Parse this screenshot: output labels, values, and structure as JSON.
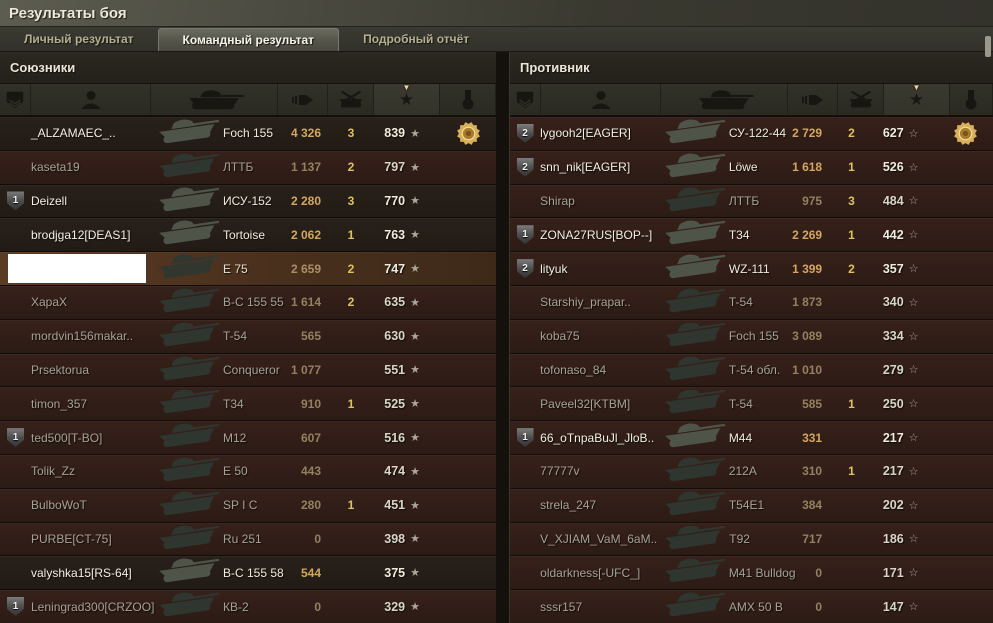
{
  "window": {
    "title": "Результаты боя"
  },
  "tabs": [
    {
      "label": "Личный результат",
      "active": false
    },
    {
      "label": "Командный результат",
      "active": true
    },
    {
      "label": "Подробный отчёт",
      "active": false
    }
  ],
  "columns": {
    "badge_icon": "rank-badge-icon",
    "player_icon": "player-icon",
    "tank_icon": "tank-icon",
    "damage_icon": "shell-icon",
    "kills_icon": "destroyed-tank-icon",
    "xp_icon": "star-icon",
    "medal_icon": "medal-icon",
    "sort_indicator": "▼",
    "sorted_column": "xp"
  },
  "colors": {
    "own_row": "#5b3b23",
    "dead_row": "#37201a",
    "alive_row": "#282019",
    "damage_gold": "#d4a75c",
    "kills_yellow": "#ddc261",
    "medal_gold": "#d9b05a",
    "active_tab": "#55544a"
  },
  "allies": {
    "title": "Союзники",
    "xp_star": "★",
    "rows": [
      {
        "name": "_ALZAMAEC_..",
        "tank": "Foch 155",
        "dmg": "4 326",
        "kills": "3",
        "xp": "839",
        "platoon": "",
        "medal": true,
        "bright": true,
        "dead": false,
        "own": false,
        "censored": false
      },
      {
        "name": "kaseta19",
        "tank": "ЛТТБ",
        "dmg": "1 137",
        "kills": "2",
        "xp": "797",
        "platoon": "",
        "medal": false,
        "bright": false,
        "dead": true,
        "own": false,
        "censored": false
      },
      {
        "name": "Deizell",
        "tank": "ИСУ-152",
        "dmg": "2 280",
        "kills": "3",
        "xp": "770",
        "platoon": "1",
        "medal": false,
        "bright": true,
        "dead": false,
        "own": false,
        "censored": false
      },
      {
        "name": "brodjga12[DEAS1]",
        "tank": "Tortoise",
        "dmg": "2 062",
        "kills": "1",
        "xp": "763",
        "platoon": "",
        "medal": false,
        "bright": true,
        "dead": false,
        "own": false,
        "censored": false
      },
      {
        "name": "",
        "tank": "E 75",
        "dmg": "2 659",
        "kills": "2",
        "xp": "747",
        "platoon": "",
        "medal": false,
        "bright": false,
        "dead": false,
        "own": true,
        "censored": true
      },
      {
        "name": "XapaX",
        "tank": "B-C 155 55",
        "dmg": "1 614",
        "kills": "2",
        "xp": "635",
        "platoon": "",
        "medal": false,
        "bright": false,
        "dead": true,
        "own": false,
        "censored": false
      },
      {
        "name": "mordvin156makar..",
        "tank": "T-54",
        "dmg": "565",
        "kills": "",
        "xp": "630",
        "platoon": "",
        "medal": false,
        "bright": false,
        "dead": true,
        "own": false,
        "censored": false
      },
      {
        "name": "Prsektorua",
        "tank": "Conqueror",
        "dmg": "1 077",
        "kills": "",
        "xp": "551",
        "platoon": "",
        "medal": false,
        "bright": false,
        "dead": true,
        "own": false,
        "censored": false
      },
      {
        "name": "timon_357",
        "tank": "T34",
        "dmg": "910",
        "kills": "1",
        "xp": "525",
        "platoon": "",
        "medal": false,
        "bright": false,
        "dead": true,
        "own": false,
        "censored": false
      },
      {
        "name": "ted500[T-BO]",
        "tank": "M12",
        "dmg": "607",
        "kills": "",
        "xp": "516",
        "platoon": "1",
        "medal": false,
        "bright": false,
        "dead": true,
        "own": false,
        "censored": false
      },
      {
        "name": "Tolik_Zz",
        "tank": "E 50",
        "dmg": "443",
        "kills": "",
        "xp": "474",
        "platoon": "",
        "medal": false,
        "bright": false,
        "dead": true,
        "own": false,
        "censored": false
      },
      {
        "name": "BulboWoT",
        "tank": "SP I C",
        "dmg": "280",
        "kills": "1",
        "xp": "451",
        "platoon": "",
        "medal": false,
        "bright": false,
        "dead": true,
        "own": false,
        "censored": false
      },
      {
        "name": "PURBE[CT-75]",
        "tank": "Ru 251",
        "dmg": "0",
        "kills": "",
        "xp": "398",
        "platoon": "",
        "medal": false,
        "bright": false,
        "dead": true,
        "own": false,
        "censored": false
      },
      {
        "name": "valyshka15[RS-64]",
        "tank": "B-C 155 58",
        "dmg": "544",
        "kills": "",
        "xp": "375",
        "platoon": "",
        "medal": false,
        "bright": true,
        "dead": false,
        "own": false,
        "censored": false
      },
      {
        "name": "Leningrad300[CRZOO]",
        "tank": "КВ-2",
        "dmg": "0",
        "kills": "",
        "xp": "329",
        "platoon": "1",
        "medal": false,
        "bright": false,
        "dead": true,
        "own": false,
        "censored": false
      }
    ]
  },
  "enemies": {
    "title": "Противник",
    "xp_star": "☆",
    "rows": [
      {
        "name": "lygooh2[EAGER]",
        "tank": "СУ-122-44",
        "dmg": "2 729",
        "kills": "2",
        "xp": "627",
        "platoon": "2",
        "medal": true,
        "bright": true,
        "dead": true,
        "own": false,
        "censored": false
      },
      {
        "name": "snn_nik[EAGER]",
        "tank": "Löwe",
        "dmg": "1 618",
        "kills": "1",
        "xp": "526",
        "platoon": "2",
        "medal": false,
        "bright": true,
        "dead": true,
        "own": false,
        "censored": false
      },
      {
        "name": "Shirap",
        "tank": "ЛТТБ",
        "dmg": "975",
        "kills": "3",
        "xp": "484",
        "platoon": "",
        "medal": false,
        "bright": false,
        "dead": true,
        "own": false,
        "censored": false
      },
      {
        "name": "ZONA27RUS[BOP--]",
        "tank": "T34",
        "dmg": "2 269",
        "kills": "1",
        "xp": "442",
        "platoon": "1",
        "medal": false,
        "bright": true,
        "dead": true,
        "own": false,
        "censored": false
      },
      {
        "name": "lityuk",
        "tank": "WZ-111",
        "dmg": "1 399",
        "kills": "2",
        "xp": "357",
        "platoon": "2",
        "medal": false,
        "bright": true,
        "dead": true,
        "own": false,
        "censored": false
      },
      {
        "name": "Starshiy_prapar..",
        "tank": "T-54",
        "dmg": "1 873",
        "kills": "",
        "xp": "340",
        "platoon": "",
        "medal": false,
        "bright": false,
        "dead": true,
        "own": false,
        "censored": false
      },
      {
        "name": "koba75",
        "tank": "Foch 155",
        "dmg": "3 089",
        "kills": "",
        "xp": "334",
        "platoon": "",
        "medal": false,
        "bright": false,
        "dead": true,
        "own": false,
        "censored": false
      },
      {
        "name": "tofonaso_84",
        "tank": "Т-54 обл.",
        "dmg": "1 010",
        "kills": "",
        "xp": "279",
        "platoon": "",
        "medal": false,
        "bright": false,
        "dead": true,
        "own": false,
        "censored": false
      },
      {
        "name": "Paveel32[KTBM]",
        "tank": "T-54",
        "dmg": "585",
        "kills": "1",
        "xp": "250",
        "platoon": "",
        "medal": false,
        "bright": false,
        "dead": true,
        "own": false,
        "censored": false
      },
      {
        "name": "66_oTnpaBuJl_JloB..",
        "tank": "M44",
        "dmg": "331",
        "kills": "",
        "xp": "217",
        "platoon": "1",
        "medal": false,
        "bright": true,
        "dead": true,
        "own": false,
        "censored": false
      },
      {
        "name": "77777v",
        "tank": "212A",
        "dmg": "310",
        "kills": "1",
        "xp": "217",
        "platoon": "",
        "medal": false,
        "bright": false,
        "dead": true,
        "own": false,
        "censored": false
      },
      {
        "name": "strela_247",
        "tank": "T54E1",
        "dmg": "384",
        "kills": "",
        "xp": "202",
        "platoon": "",
        "medal": false,
        "bright": false,
        "dead": true,
        "own": false,
        "censored": false
      },
      {
        "name": "V_XJIAM_VaM_6aM..",
        "tank": "T92",
        "dmg": "717",
        "kills": "",
        "xp": "186",
        "platoon": "",
        "medal": false,
        "bright": false,
        "dead": true,
        "own": false,
        "censored": false
      },
      {
        "name": "oldarkness[-UFC_]",
        "tank": "M41 Bulldog",
        "dmg": "0",
        "kills": "",
        "xp": "171",
        "platoon": "",
        "medal": false,
        "bright": false,
        "dead": true,
        "own": false,
        "censored": false
      },
      {
        "name": "sssr157",
        "tank": "AMX 50 B",
        "dmg": "0",
        "kills": "",
        "xp": "147",
        "platoon": "",
        "medal": false,
        "bright": false,
        "dead": true,
        "own": false,
        "censored": false
      }
    ]
  }
}
